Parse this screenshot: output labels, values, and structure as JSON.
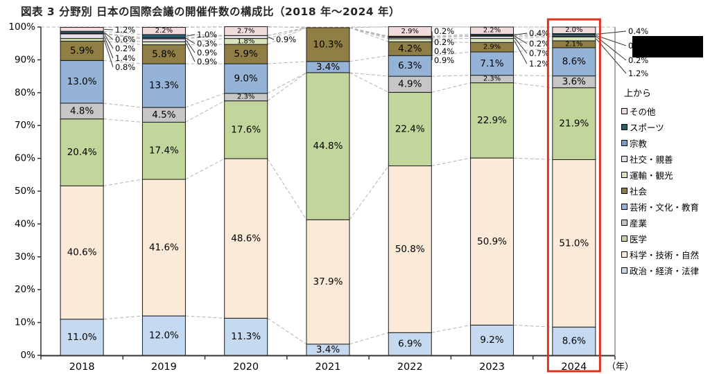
{
  "title": "図表 3 分野別 日本の国際会議の開催件数の構成比（2018 年～2024 年）",
  "chart_data": {
    "type": "bar",
    "variant": "stacked-100-percent",
    "title": "図表 3 分野別 日本の国際会議の開催件数の構成比（2018 年～2024 年）",
    "categories": [
      "2018",
      "2019",
      "2020",
      "2021",
      "2022",
      "2023",
      "2024"
    ],
    "x_axis_unit": "（年）",
    "y_ticks": [
      "0%",
      "10%",
      "20%",
      "30%",
      "40%",
      "50%",
      "60%",
      "70%",
      "80%",
      "90%",
      "100%"
    ],
    "ylim": [
      0,
      100
    ],
    "grid": "top-dashed-only",
    "series_lines": "dashed-gray-between-bars",
    "legend_position": "right",
    "legend_header": "上から",
    "legend_top_to_bottom": [
      "その他",
      "スポーツ",
      "宗教",
      "社交・親善",
      "運輸・観光",
      "社会",
      "芸術・文化・教育",
      "産業",
      "医学",
      "科学・技術・自然",
      "政治・経済・法律"
    ],
    "series": [
      {
        "name": "政治・経済・法律",
        "color": "#c5d9f1",
        "values": [
          11.0,
          12.0,
          11.3,
          3.4,
          6.9,
          9.2,
          8.6
        ]
      },
      {
        "name": "科学・技術・自然",
        "color": "#fcead9",
        "values": [
          40.6,
          41.6,
          48.6,
          37.9,
          50.8,
          50.9,
          51.0
        ]
      },
      {
        "name": "医学",
        "color": "#c2d59b",
        "values": [
          20.4,
          17.4,
          17.6,
          44.8,
          22.4,
          22.9,
          21.9
        ]
      },
      {
        "name": "産業",
        "color": "#c6c6c6",
        "values": [
          4.8,
          4.5,
          2.3,
          0,
          4.9,
          2.3,
          3.6
        ]
      },
      {
        "name": "芸術・文化・教育",
        "color": "#95b3d7",
        "values": [
          13.0,
          13.3,
          9.0,
          3.4,
          6.3,
          7.1,
          8.6
        ]
      },
      {
        "name": "社会",
        "color": "#8f7f45",
        "values": [
          5.9,
          5.8,
          5.9,
          10.3,
          4.2,
          2.9,
          2.1
        ]
      },
      {
        "name": "運輸・観光",
        "color": "#d8e4bc",
        "values": [
          0.8,
          0.9,
          1.8,
          0,
          0.9,
          1.2,
          1.2
        ]
      },
      {
        "name": "社交・親善",
        "color": "#e5dfec",
        "values": [
          1.4,
          0.9,
          0.9,
          0,
          0.4,
          0.7,
          0.2
        ]
      },
      {
        "name": "宗教",
        "color": "#79a0c8",
        "values": [
          0.2,
          0.3,
          0,
          0,
          0.2,
          0.2,
          0.4
        ]
      },
      {
        "name": "スポーツ",
        "color": "#255f70",
        "values": [
          0.6,
          1.0,
          0,
          0,
          0.2,
          0.4,
          0.4
        ]
      },
      {
        "name": "その他",
        "color": "#f2dcdb",
        "values": [
          1.2,
          2.2,
          2.7,
          0,
          2.9,
          2.2,
          2.0
        ]
      }
    ],
    "callout_labels": [
      {
        "year": "2018",
        "items": [
          {
            "series": "その他",
            "text": "1.2%"
          },
          {
            "series": "スポーツ",
            "text": "0.6%"
          },
          {
            "series": "宗教",
            "text": "0.2%"
          },
          {
            "series": "社交・親善",
            "text": "1.4%"
          },
          {
            "series": "運輸・観光",
            "text": "0.8%"
          }
        ]
      },
      {
        "year": "2019",
        "items": [
          {
            "series": "スポーツ",
            "text": "1.0%"
          },
          {
            "series": "宗教",
            "text": "0.3%"
          },
          {
            "series": "社交・親善",
            "text": "0.9%"
          },
          {
            "series": "運輸・観光",
            "text": "0.9%"
          }
        ]
      },
      {
        "year": "2020",
        "items": [
          {
            "series": "社交・親善",
            "text": "0.9%"
          }
        ]
      },
      {
        "year": "2021",
        "items": []
      },
      {
        "year": "2022",
        "items": [
          {
            "series": "スポーツ",
            "text": "0.2%"
          },
          {
            "series": "宗教",
            "text": "0.2%"
          },
          {
            "series": "社交・親善",
            "text": "0.4%"
          },
          {
            "series": "運輸・観光",
            "text": "0.9%"
          }
        ]
      },
      {
        "year": "2023",
        "items": [
          {
            "series": "スポーツ",
            "text": "0.4%"
          },
          {
            "series": "宗教",
            "text": "0.2%"
          },
          {
            "series": "社交・親善",
            "text": "0.7%"
          },
          {
            "series": "運輸・観光",
            "text": "1.2%"
          }
        ]
      },
      {
        "year": "2024",
        "items": [
          {
            "series": "スポーツ",
            "text": "0.4%"
          },
          {
            "series": "宗教",
            "text": "0.4%"
          },
          {
            "series": "社交・親善",
            "text": "0.2%"
          },
          {
            "series": "運輸・観光",
            "text": "1.2%"
          }
        ]
      }
    ],
    "highlight": {
      "year": "2024",
      "color": "#e0301e"
    },
    "redaction_box": {
      "color": "#000000"
    }
  }
}
